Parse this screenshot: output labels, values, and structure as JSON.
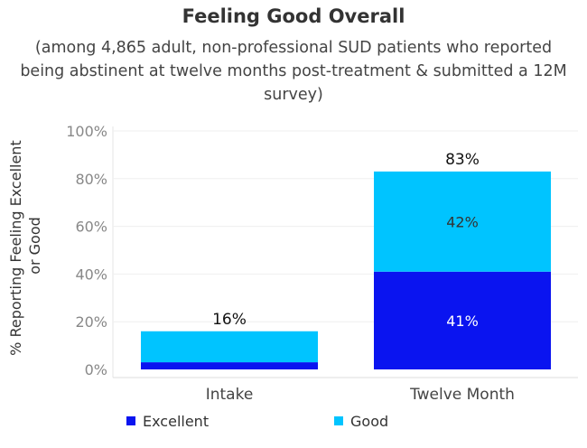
{
  "chart_data": {
    "type": "bar",
    "stacked": true,
    "title": "Feeling Good Overall",
    "subtitle": "(among 4,865 adult, non-professional SUD patients who reported being abstinent at twelve months post-treatment & submitted a 12M survey)",
    "ylabel": "% Reporting Feeling Excellent or Good",
    "ylim": [
      0,
      100
    ],
    "yticks": [
      "0%",
      "20%",
      "40%",
      "60%",
      "80%",
      "100%"
    ],
    "categories": [
      "Intake",
      "Twelve Month"
    ],
    "series": [
      {
        "name": "Excellent",
        "color": "#0a14f0",
        "values": [
          3,
          41
        ],
        "labels": [
          "",
          "41%"
        ]
      },
      {
        "name": "Good",
        "color": "#00c4ff",
        "values": [
          13,
          42
        ],
        "labels": [
          "",
          "42%"
        ]
      }
    ],
    "totals": [
      "16%",
      "83%"
    ],
    "grid": true,
    "legend": "bottom"
  }
}
